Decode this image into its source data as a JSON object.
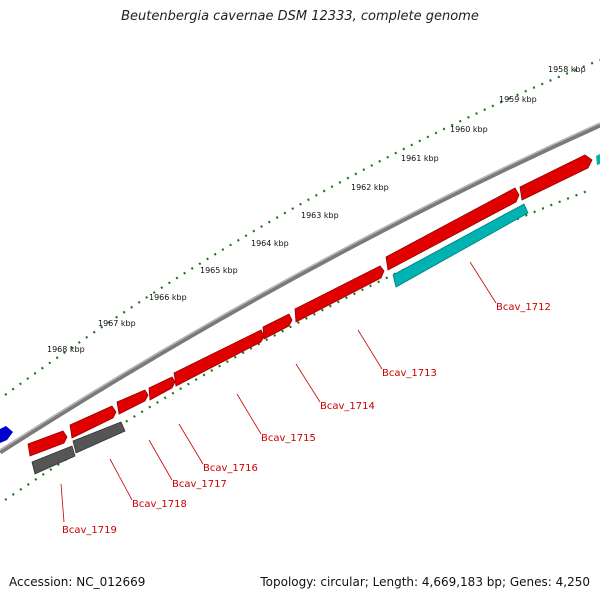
{
  "title": "Beutenbergia cavernae DSM 12333, complete genome",
  "footer": {
    "accession": "Accession: NC_012669",
    "topology": "Topology: circular; Length: 4,669,183 bp; Genes: 4,250"
  },
  "scale": {
    "ticks": [
      "1958 kbp",
      "1959 kbp",
      "1960 kbp",
      "1961 kbp",
      "1962 kbp",
      "1963 kbp",
      "1964 kbp",
      "1965 kbp",
      "1966 kbp",
      "1967 kbp",
      "1968 kbp"
    ],
    "tick_color": "#1a7a1a"
  },
  "genes": [
    {
      "label": "Bcav_1712",
      "color": "#00b3b3"
    },
    {
      "label": "Bcav_1713",
      "color": "#e00000"
    },
    {
      "label": "Bcav_1714",
      "color": "#e00000"
    },
    {
      "label": "Bcav_1715",
      "color": "#e00000"
    },
    {
      "label": "Bcav_1716",
      "color": "#e00000"
    },
    {
      "label": "Bcav_1717",
      "color": "#e00000"
    },
    {
      "label": "Bcav_1718",
      "color": "#555555"
    },
    {
      "label": "Bcav_1719",
      "color": "#555555"
    }
  ],
  "colors": {
    "forward_strand": "#e00000",
    "reverse_strand": "#00b3b3",
    "other_feature": "#555555",
    "label_line": "#cc0000",
    "backbone": "#808080",
    "partial_feature": "#0000cc"
  }
}
